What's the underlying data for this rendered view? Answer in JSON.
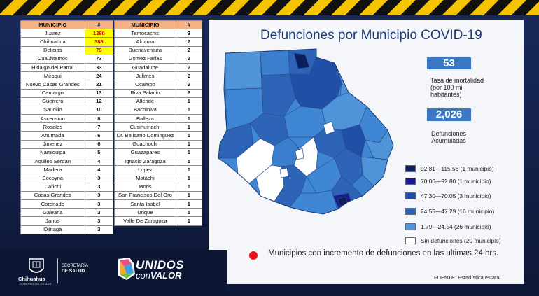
{
  "title": "Defunciones por Municipio COVID-19",
  "table_headers": {
    "municipio": "MUNICIPIO",
    "count": "#"
  },
  "table1": [
    {
      "name": "Juarez",
      "count": "1280",
      "highlight": true
    },
    {
      "name": "Chihuahua",
      "count": "388",
      "highlight": true
    },
    {
      "name": "Delicias",
      "count": "79",
      "highlight": true
    },
    {
      "name": "Cuauhtemoc",
      "count": "73"
    },
    {
      "name": "Hidalgo del Parral",
      "count": "33"
    },
    {
      "name": "Meoqui",
      "count": "24"
    },
    {
      "name": "Nuevo Casas Grandes",
      "count": "21"
    },
    {
      "name": "Camargo",
      "count": "13"
    },
    {
      "name": "Guerrero",
      "count": "12"
    },
    {
      "name": "Saucillo",
      "count": "10"
    },
    {
      "name": "Ascension",
      "count": "8"
    },
    {
      "name": "Rosales",
      "count": "7"
    },
    {
      "name": "Ahumada",
      "count": "6"
    },
    {
      "name": "Jimenez",
      "count": "6"
    },
    {
      "name": "Namiquipa",
      "count": "5"
    },
    {
      "name": "Aquiles Serdan",
      "count": "4"
    },
    {
      "name": "Madera",
      "count": "4"
    },
    {
      "name": "Bocoyna",
      "count": "3"
    },
    {
      "name": "Carichi",
      "count": "3"
    },
    {
      "name": "Casas Grandes",
      "count": "3"
    },
    {
      "name": "Coronado",
      "count": "3"
    },
    {
      "name": "Galeana",
      "count": "3"
    },
    {
      "name": "Janos",
      "count": "3"
    },
    {
      "name": "Ojinaga",
      "count": "3"
    }
  ],
  "table2": [
    {
      "name": "Temosachic",
      "count": "3"
    },
    {
      "name": "Aldama",
      "count": "2"
    },
    {
      "name": "Buenaventura",
      "count": "2"
    },
    {
      "name": "Gomez Farias",
      "count": "2"
    },
    {
      "name": "Guadalupe",
      "count": "2"
    },
    {
      "name": "Julimes",
      "count": "2"
    },
    {
      "name": "Ocampo",
      "count": "2"
    },
    {
      "name": "Riva Palacio",
      "count": "2"
    },
    {
      "name": "Allende",
      "count": "1"
    },
    {
      "name": "Bachiniva",
      "count": "1"
    },
    {
      "name": "Balleza",
      "count": "1"
    },
    {
      "name": "Cusihuiriachi",
      "count": "1"
    },
    {
      "name": "Dr. Belisario Dominguez",
      "count": "1"
    },
    {
      "name": "Guachochi",
      "count": "1"
    },
    {
      "name": "Guazapares",
      "count": "1"
    },
    {
      "name": "Ignacio Zaragoza",
      "count": "1"
    },
    {
      "name": "Lopez",
      "count": "1"
    },
    {
      "name": "Matachi",
      "count": "1"
    },
    {
      "name": "Moris",
      "count": "1"
    },
    {
      "name": "San Francisco Del Oro",
      "count": "1"
    },
    {
      "name": "Santa Isabel",
      "count": "1"
    },
    {
      "name": "Urique",
      "count": "1"
    },
    {
      "name": "Valle De Zaragoza",
      "count": "1"
    }
  ],
  "stats": {
    "mortality_value": "53",
    "mortality_label_1": "Tasa de mortalidad",
    "mortality_label_2": "(por 100 mil",
    "mortality_label_3": "habitantes)",
    "deaths_value": "2,026",
    "deaths_label_1": "Defunciones",
    "deaths_label_2": "Acumuladas"
  },
  "legend": [
    {
      "label": "92.81—115.56 (1 municipio)",
      "color": "#0b1f5c"
    },
    {
      "label": "70.06—92.80 (1 municipio)",
      "color": "#1a1a8f"
    },
    {
      "label": "47.30—70.05 (3 municipio)",
      "color": "#1f4fa6"
    },
    {
      "label": "24.55—47.29 (16 municipio)",
      "color": "#2e64b8"
    },
    {
      "label": "1.79—24.54 (26 municipio)",
      "color": "#4f93d9"
    },
    {
      "label": "Sin defunciones (20 municipio)",
      "color": "#ffffff"
    }
  ],
  "increase_note": "Municipios con incremento de defunciones en las ultimas 24 hrs.",
  "source": "FUENTE: Estadística estatal.",
  "footer": {
    "gov_name": "Chihuahua",
    "gov_sub": "GOBIERNO DEL ESTADO",
    "sec_line1": "SECRETARÍA",
    "sec_line2": "DE SALUD",
    "brand_line1": "UNIDOS",
    "brand_con": "con",
    "brand_valor": "VALOR"
  },
  "colors": {
    "header_orange": "#f4b183",
    "highlight_yellow": "#ffff00",
    "stat_blue": "#3a78c4",
    "red_dot": "#e8141b"
  }
}
